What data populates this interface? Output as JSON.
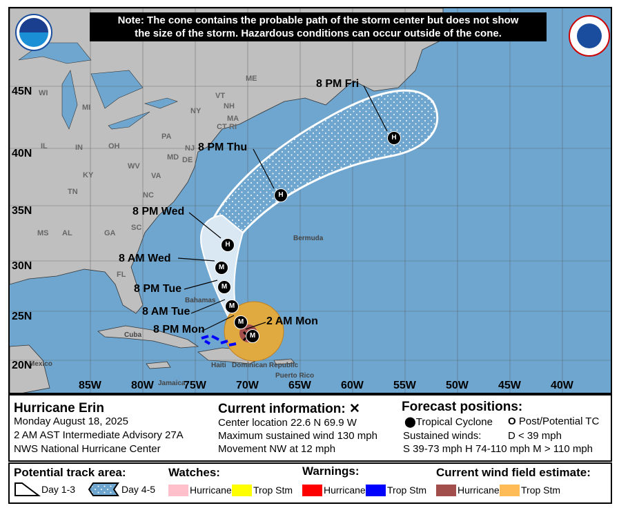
{
  "note": {
    "line1": "Note: The cone contains the probable path of the storm center but does not show",
    "line2": "the size of the storm. Hazardous conditions can occur outside of the cone."
  },
  "logos": {
    "left": "NOAA",
    "right": "NATIONAL WEATHER SERVICE"
  },
  "map": {
    "lat_labels": [
      "45N",
      "40N",
      "35N",
      "30N",
      "25N",
      "20N"
    ],
    "lon_labels": [
      "85W",
      "80W",
      "75W",
      "70W",
      "65W",
      "60W",
      "55W",
      "50W",
      "45W",
      "40W"
    ],
    "state_labels": [
      "WI",
      "MI",
      "NY",
      "VT",
      "NH",
      "ME",
      "MA",
      "CT",
      "RI",
      "PA",
      "IL",
      "IN",
      "OH",
      "WV",
      "VA",
      "KY",
      "NJ",
      "MD",
      "DE",
      "TN",
      "NC",
      "SC",
      "MS",
      "AL",
      "GA",
      "FL"
    ],
    "place_labels": [
      "Bermuda",
      "Cuba",
      "Mexico",
      "Bahamas",
      "Jamaica",
      "Haiti",
      "Dominican Republic",
      "Puerto Rico"
    ],
    "forecast_points": [
      {
        "label": "2 AM Mon",
        "symbol": "M"
      },
      {
        "label": "8 PM Mon",
        "symbol": "M"
      },
      {
        "label": "8 AM Tue",
        "symbol": "M"
      },
      {
        "label": "8 PM Tue",
        "symbol": "M"
      },
      {
        "label": "8 AM Wed",
        "symbol": "M"
      },
      {
        "label": "8 PM Wed",
        "symbol": "H"
      },
      {
        "label": "8 PM Thu",
        "symbol": "H"
      },
      {
        "label": "8 PM Fri",
        "symbol": "H"
      }
    ],
    "colors": {
      "ocean": "#6fa6cf",
      "land": "#bfbfbf",
      "cone_day13": "#d9e8f3",
      "trop_storm_wind": "#f6b94a",
      "hurricane_wind": "#a14e4c",
      "trop_storm_warning": "#0000ff"
    }
  },
  "info": {
    "storm_name": "Hurricane Erin",
    "date": "Monday August 18, 2025",
    "advisory": "2 AM AST Intermediate Advisory 27A",
    "center": "NWS National Hurricane Center",
    "current_title": "Current information: ✕",
    "location": "Center location 22.6 N 69.9 W",
    "wind": "Maximum sustained wind 130 mph",
    "movement": "Movement NW at 12 mph",
    "forecast_title": "Forecast positions:",
    "tc": "Tropical Cyclone",
    "ptc": "Post/Potential TC",
    "sustained": "Sustained winds:",
    "d": "D < 39 mph",
    "shm": "S 39-73 mph  H 74-110 mph  M > 110 mph"
  },
  "legend": {
    "track_title": "Potential track area:",
    "day13": "Day 1-3",
    "day45": "Day 4-5",
    "watches_title": "Watches:",
    "warnings_title": "Warnings:",
    "wind_title": "Current wind field estimate:",
    "hurricane": "Hurricane",
    "tropstm": "Trop Stm",
    "colors": {
      "hurricane_watch": "#ffc0cb",
      "ts_watch": "#ffff00",
      "hurricane_warning": "#ff0000",
      "ts_warning": "#0000ff",
      "hurricane_wind": "#a14e4c",
      "ts_wind": "#ffbb55"
    }
  }
}
